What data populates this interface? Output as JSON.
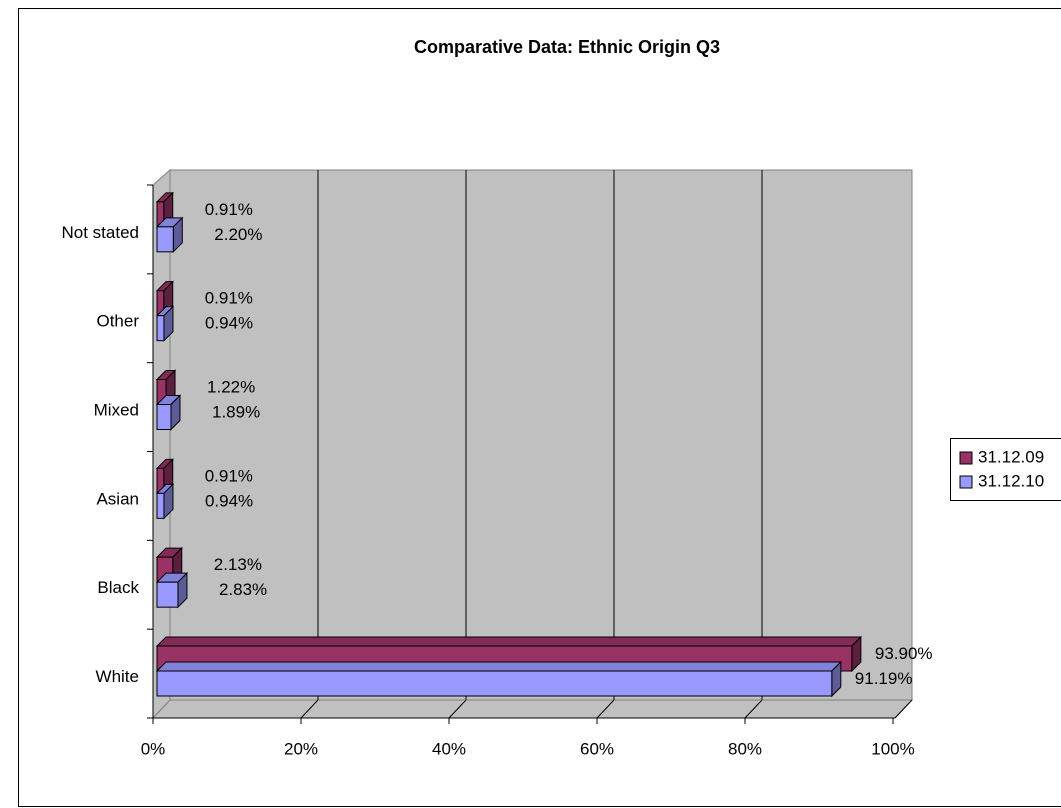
{
  "chart_data": {
    "type": "bar",
    "orientation": "horizontal",
    "title": "Comparative Data: Ethnic Origin Q3",
    "categories": [
      "White",
      "Black",
      "Asian",
      "Mixed",
      "Other",
      "Not stated"
    ],
    "series": [
      {
        "name": "31.12.09",
        "color": "#993366",
        "values": [
          93.9,
          2.13,
          0.91,
          1.22,
          0.91,
          0.91
        ],
        "value_labels": [
          "93.90%",
          "2.13%",
          "0.91%",
          "1.22%",
          "0.91%",
          "0.91%"
        ]
      },
      {
        "name": "31.12.10",
        "color": "#9999ff",
        "values": [
          91.19,
          2.83,
          0.94,
          1.89,
          0.94,
          2.2
        ],
        "value_labels": [
          "91.19%",
          "2.83%",
          "0.94%",
          "1.89%",
          "0.94%",
          "2.20%"
        ]
      }
    ],
    "xlim": [
      0,
      100
    ],
    "xticks": [
      {
        "value": 0,
        "label": "0%"
      },
      {
        "value": 20,
        "label": "20%"
      },
      {
        "value": 40,
        "label": "40%"
      },
      {
        "value": 60,
        "label": "60%"
      },
      {
        "value": 80,
        "label": "80%"
      },
      {
        "value": 100,
        "label": "100%"
      }
    ],
    "grid": true,
    "legend": "right"
  }
}
